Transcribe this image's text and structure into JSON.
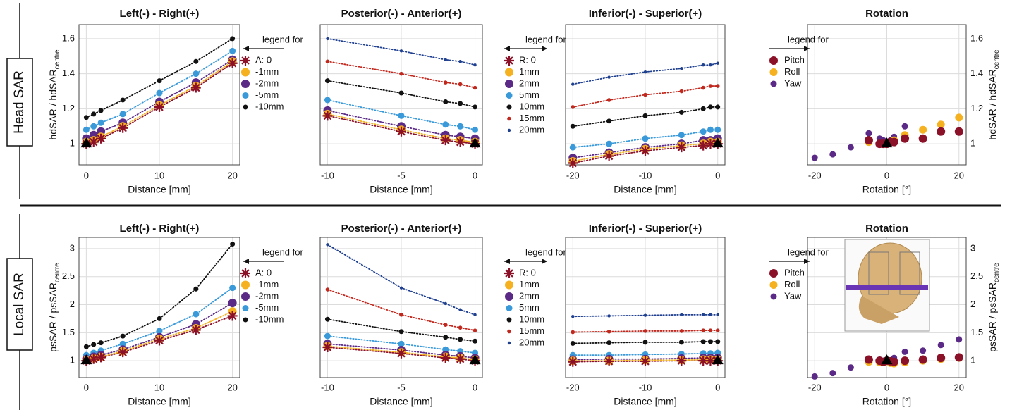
{
  "rows": [
    "Head SAR",
    "Local SAR"
  ],
  "chart_data": [
    {
      "type": "line",
      "title": "Left(-) - Right(+)",
      "xlabel": "Distance [mm]",
      "ylabel": {
        "text": "hdSAR / hdSAR",
        "subscript": "centre"
      },
      "legend_title": "legend for",
      "legend_arrow": "left",
      "x": [
        0,
        1,
        2,
        5,
        10,
        15,
        20
      ],
      "xlim": [
        -1,
        21
      ],
      "xticks": [
        0,
        10,
        20
      ],
      "ylim": [
        0.88,
        1.68
      ],
      "yticks": [
        1,
        1.2,
        1.4,
        1.6
      ],
      "grid": true,
      "centre": {
        "x": 0,
        "y": 1
      },
      "series": [
        {
          "name": "A: 0",
          "color": "#8b1128",
          "marker": "star",
          "values": [
            1.0,
            1.01,
            1.03,
            1.09,
            1.21,
            1.32,
            1.46
          ]
        },
        {
          "name": "-1mm",
          "color": "#f5b120",
          "values": [
            1.01,
            1.02,
            1.04,
            1.1,
            1.22,
            1.33,
            1.47
          ]
        },
        {
          "name": "-2mm",
          "color": "#5b2a86",
          "values": [
            1.03,
            1.05,
            1.07,
            1.12,
            1.24,
            1.35,
            1.48
          ]
        },
        {
          "name": "-5mm",
          "color": "#3a9ad9",
          "values": [
            1.08,
            1.1,
            1.12,
            1.17,
            1.29,
            1.4,
            1.53
          ]
        },
        {
          "name": "-10mm",
          "color": "#111111",
          "values": [
            1.15,
            1.17,
            1.19,
            1.25,
            1.36,
            1.47,
            1.6
          ]
        }
      ]
    },
    {
      "type": "line",
      "title": "Posterior(-) - Anterior(+)",
      "xlabel": "Distance [mm]",
      "ytick_labels": false,
      "legend_title": "legend for",
      "legend_arrow": "both",
      "x": [
        -10,
        -5,
        -2,
        -1,
        0
      ],
      "xlim": [
        -10.5,
        0.5
      ],
      "xticks": [
        -10,
        -5,
        0
      ],
      "ylim": [
        0.88,
        1.68
      ],
      "yticks": [
        1,
        1.2,
        1.4,
        1.6
      ],
      "grid": true,
      "centre": {
        "x": 0,
        "y": 1
      },
      "series": [
        {
          "name": "R: 0",
          "color": "#8b1128",
          "marker": "star",
          "values": [
            1.16,
            1.07,
            1.02,
            1.01,
            1.0
          ]
        },
        {
          "name": "1mm",
          "color": "#f5b120",
          "values": [
            1.17,
            1.08,
            1.03,
            1.02,
            1.01
          ]
        },
        {
          "name": "2mm",
          "color": "#5b2a86",
          "values": [
            1.19,
            1.1,
            1.05,
            1.04,
            1.03
          ]
        },
        {
          "name": "5mm",
          "color": "#3a9ad9",
          "values": [
            1.25,
            1.16,
            1.11,
            1.1,
            1.08
          ]
        },
        {
          "name": "10mm",
          "color": "#111111",
          "values": [
            1.36,
            1.29,
            1.24,
            1.23,
            1.21
          ]
        },
        {
          "name": "15mm",
          "color": "#c0281e",
          "values": [
            1.47,
            1.4,
            1.35,
            1.34,
            1.32
          ]
        },
        {
          "name": "20mm",
          "color": "#1f3f8f",
          "values": [
            1.6,
            1.53,
            1.48,
            1.47,
            1.45
          ]
        }
      ]
    },
    {
      "type": "line",
      "title": "Inferior(-) - Superior(+)",
      "xlabel": "Distance [mm]",
      "ytick_labels": false,
      "x": [
        -20,
        -15,
        -10,
        -5,
        -2,
        -1,
        0
      ],
      "xlim": [
        -21,
        1
      ],
      "xticks": [
        -20,
        -10,
        0
      ],
      "ylim": [
        0.88,
        1.68
      ],
      "yticks": [
        1,
        1.2,
        1.4,
        1.6
      ],
      "grid": true,
      "centre": {
        "x": 0,
        "y": 1
      },
      "series": [
        {
          "color": "#8b1128",
          "marker": "star",
          "values": [
            0.89,
            0.93,
            0.96,
            0.98,
            0.99,
            1.0,
            1.0
          ]
        },
        {
          "color": "#f5b120",
          "values": [
            0.9,
            0.94,
            0.97,
            0.99,
            1.0,
            1.01,
            1.01
          ]
        },
        {
          "color": "#5b2a86",
          "values": [
            0.92,
            0.95,
            0.98,
            1.0,
            1.02,
            1.02,
            1.03
          ]
        },
        {
          "color": "#3a9ad9",
          "values": [
            0.98,
            1.0,
            1.03,
            1.05,
            1.07,
            1.08,
            1.08
          ]
        },
        {
          "color": "#111111",
          "values": [
            1.1,
            1.13,
            1.16,
            1.18,
            1.2,
            1.21,
            1.21
          ]
        },
        {
          "color": "#c0281e",
          "values": [
            1.21,
            1.25,
            1.28,
            1.3,
            1.32,
            1.33,
            1.33
          ]
        },
        {
          "color": "#1f3f8f",
          "values": [
            1.34,
            1.38,
            1.41,
            1.43,
            1.45,
            1.45,
            1.46
          ]
        }
      ]
    },
    {
      "type": "scatter",
      "title": "Rotation",
      "xlabel": "Rotation [°]",
      "ylabel": {
        "text": "hdSAR / hdSAR",
        "subscript": "centre"
      },
      "ylabel_side": "right",
      "legend_title": "legend for",
      "legend_arrow": "right",
      "x": [
        -20,
        -15,
        -10,
        -5,
        -2,
        -1,
        0,
        1,
        2,
        5,
        10,
        15,
        20
      ],
      "xlim": [
        -22,
        22
      ],
      "xticks": [
        -20,
        0,
        20
      ],
      "ylim": [
        0.88,
        1.68
      ],
      "yticks": [
        1,
        1.2,
        1.4,
        1.6
      ],
      "grid": true,
      "centre": {
        "x": 0,
        "y": 1
      },
      "series": [
        {
          "name": "Pitch",
          "color": "#8b1128",
          "values": [
            null,
            null,
            null,
            1.02,
            1.0,
            1.0,
            1.0,
            1.01,
            1.01,
            1.03,
            1.03,
            1.07,
            1.07
          ]
        },
        {
          "name": "Roll",
          "color": "#f5b120",
          "values": [
            null,
            null,
            null,
            1.01,
            1.0,
            1.0,
            1.0,
            1.01,
            1.02,
            1.05,
            1.08,
            1.11,
            1.15
          ]
        },
        {
          "name": "Yaw",
          "color": "#5b2a86",
          "values": [
            0.92,
            0.94,
            0.98,
            1.06,
            1.03,
            1.02,
            1.0,
            1.02,
            1.04,
            1.1,
            1.08,
            1.07,
            1.07
          ]
        }
      ]
    },
    {
      "type": "line",
      "title": "Left(-) - Right(+)",
      "xlabel": "Distance [mm]",
      "ylabel": {
        "text": "psSAR / psSAR",
        "subscript": "centre"
      },
      "legend_title": "legend for",
      "legend_arrow": "left",
      "x": [
        0,
        1,
        2,
        5,
        10,
        15,
        20
      ],
      "xlim": [
        -1,
        21
      ],
      "xticks": [
        0,
        10,
        20
      ],
      "ylim": [
        0.7,
        3.2
      ],
      "yticks": [
        1,
        1.5,
        2,
        2.5,
        3
      ],
      "grid": true,
      "centre": {
        "x": 0,
        "y": 1
      },
      "series": [
        {
          "name": "A: 0",
          "color": "#8b1128",
          "marker": "star",
          "values": [
            1.0,
            1.03,
            1.06,
            1.15,
            1.36,
            1.55,
            1.8
          ]
        },
        {
          "name": "-1mm",
          "color": "#f5b120",
          "values": [
            1.01,
            1.04,
            1.07,
            1.17,
            1.39,
            1.58,
            1.88
          ]
        },
        {
          "name": "-2mm",
          "color": "#5b2a86",
          "values": [
            1.03,
            1.07,
            1.1,
            1.2,
            1.42,
            1.65,
            2.03
          ]
        },
        {
          "name": "-5mm",
          "color": "#3a9ad9",
          "values": [
            1.1,
            1.14,
            1.18,
            1.3,
            1.53,
            1.83,
            2.3
          ]
        },
        {
          "name": "-10mm",
          "color": "#111111",
          "values": [
            1.25,
            1.29,
            1.32,
            1.44,
            1.75,
            2.28,
            3.08
          ]
        }
      ]
    },
    {
      "type": "line",
      "title": "Posterior(-) - Anterior(+)",
      "xlabel": "Distance [mm]",
      "ytick_labels": false,
      "legend_title": "legend for",
      "legend_arrow": "both",
      "x": [
        -10,
        -5,
        -2,
        -1,
        0
      ],
      "xlim": [
        -10.5,
        0.5
      ],
      "xticks": [
        -10,
        -5,
        0
      ],
      "ylim": [
        0.7,
        3.2
      ],
      "yticks": [
        1,
        1.5,
        2,
        2.5,
        3
      ],
      "grid": true,
      "centre": {
        "x": 0,
        "y": 1
      },
      "series": [
        {
          "name": "R: 0",
          "color": "#8b1128",
          "marker": "star",
          "values": [
            1.24,
            1.13,
            1.05,
            1.03,
            1.0
          ]
        },
        {
          "name": "1mm",
          "color": "#f5b120",
          "values": [
            1.26,
            1.15,
            1.07,
            1.05,
            1.02
          ]
        },
        {
          "name": "2mm",
          "color": "#5b2a86",
          "values": [
            1.3,
            1.19,
            1.1,
            1.08,
            1.05
          ]
        },
        {
          "name": "5mm",
          "color": "#3a9ad9",
          "values": [
            1.44,
            1.3,
            1.2,
            1.17,
            1.14
          ]
        },
        {
          "name": "10mm",
          "color": "#111111",
          "values": [
            1.74,
            1.52,
            1.42,
            1.38,
            1.35
          ]
        },
        {
          "name": "15mm",
          "color": "#c0281e",
          "values": [
            2.27,
            1.82,
            1.64,
            1.59,
            1.54
          ]
        },
        {
          "name": "20mm",
          "color": "#1f3f8f",
          "values": [
            3.07,
            2.3,
            2.02,
            1.91,
            1.82
          ]
        }
      ]
    },
    {
      "type": "line",
      "title": "Inferior(-) - Superior(+)",
      "xlabel": "Distance [mm]",
      "ytick_labels": false,
      "x": [
        -20,
        -15,
        -10,
        -5,
        -2,
        -1,
        0
      ],
      "xlim": [
        -21,
        1
      ],
      "xticks": [
        -20,
        -10,
        0
      ],
      "ylim": [
        0.7,
        3.2
      ],
      "yticks": [
        1,
        1.5,
        2,
        2.5,
        3
      ],
      "grid": true,
      "centre": {
        "x": 0,
        "y": 1
      },
      "series": [
        {
          "color": "#8b1128",
          "marker": "star",
          "values": [
            0.98,
            0.99,
            0.99,
            1.0,
            1.0,
            1.0,
            1.0
          ]
        },
        {
          "color": "#f5b120",
          "values": [
            1.0,
            1.0,
            1.01,
            1.01,
            1.02,
            1.02,
            1.02
          ]
        },
        {
          "color": "#5b2a86",
          "values": [
            1.02,
            1.03,
            1.03,
            1.04,
            1.05,
            1.05,
            1.05
          ]
        },
        {
          "color": "#3a9ad9",
          "values": [
            1.1,
            1.1,
            1.11,
            1.12,
            1.13,
            1.13,
            1.14
          ]
        },
        {
          "color": "#111111",
          "values": [
            1.31,
            1.32,
            1.33,
            1.33,
            1.34,
            1.34,
            1.34
          ]
        },
        {
          "color": "#c0281e",
          "values": [
            1.51,
            1.52,
            1.53,
            1.53,
            1.54,
            1.54,
            1.54
          ]
        },
        {
          "color": "#1f3f8f",
          "values": [
            1.79,
            1.8,
            1.81,
            1.82,
            1.82,
            1.82,
            1.82
          ]
        }
      ]
    },
    {
      "type": "scatter",
      "title": "Rotation",
      "xlabel": "Rotation [°]",
      "ylabel": {
        "text": "psSAR / psSAR",
        "subscript": "centre"
      },
      "ylabel_side": "right",
      "legend_title": "legend for",
      "legend_arrow": "right",
      "x": [
        -20,
        -15,
        -10,
        -5,
        -2,
        -1,
        0,
        1,
        2,
        5,
        10,
        15,
        20
      ],
      "xlim": [
        -22,
        22
      ],
      "xticks": [
        -20,
        0,
        20
      ],
      "ylim": [
        0.7,
        3.2
      ],
      "yticks": [
        1,
        1.5,
        2,
        2.5,
        3
      ],
      "grid": true,
      "centre": {
        "x": 0,
        "y": 1
      },
      "series": [
        {
          "name": "Pitch",
          "color": "#8b1128",
          "values": [
            null,
            null,
            null,
            1.02,
            1.0,
            0.98,
            1.0,
            0.99,
            0.98,
            1.0,
            1.02,
            1.05,
            1.06
          ]
        },
        {
          "name": "Roll",
          "color": "#f5b120",
          "values": [
            null,
            null,
            null,
            0.98,
            0.97,
            0.97,
            1.0,
            0.96,
            0.95,
            0.97,
            1.0,
            1.03,
            1.05
          ]
        },
        {
          "name": "Yaw",
          "color": "#5b2a86",
          "values": [
            0.72,
            0.78,
            0.88,
            0.98,
            1.02,
            1.0,
            1.0,
            1.0,
            1.05,
            1.16,
            1.18,
            1.28,
            1.38
          ]
        }
      ]
    }
  ]
}
